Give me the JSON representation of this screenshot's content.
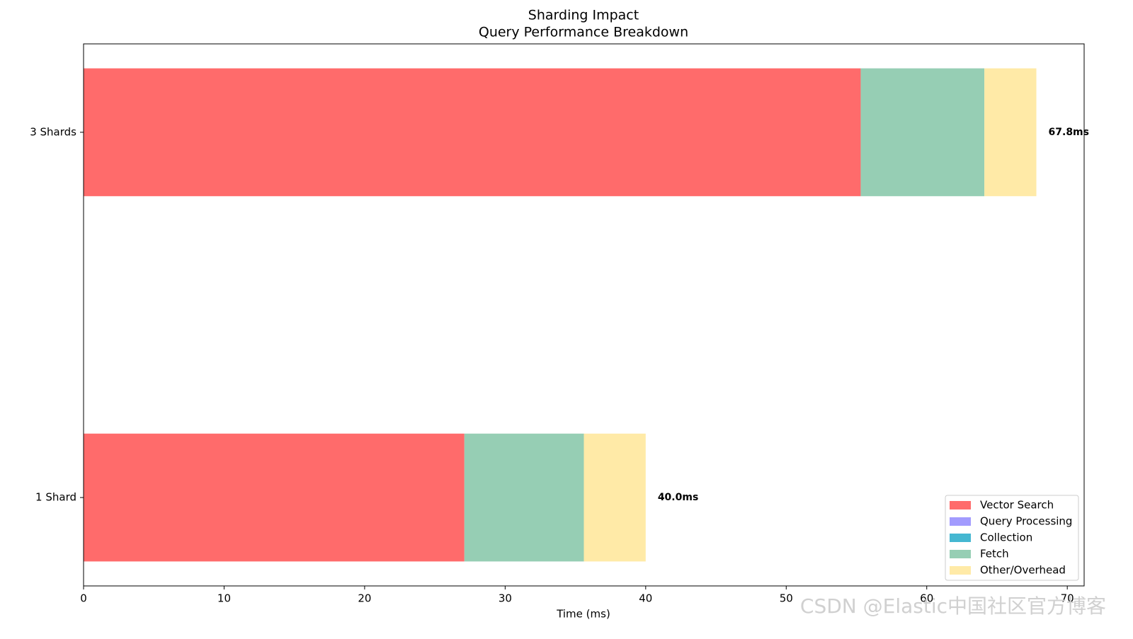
{
  "chart_data": {
    "type": "barh_stacked",
    "title": "Sharding Impact",
    "subtitle": "Query Performance Breakdown",
    "xlabel": "Time (ms)",
    "categories": [
      "1 Shard",
      "3 Shards"
    ],
    "series": [
      {
        "name": "Vector Search",
        "color": "#ff6b6b",
        "values": [
          27.1,
          55.3
        ]
      },
      {
        "name": "Query Processing",
        "color": "#a29bfe",
        "values": [
          0,
          0
        ]
      },
      {
        "name": "Collection",
        "color": "#45b7d1",
        "values": [
          0,
          0
        ]
      },
      {
        "name": "Fetch",
        "color": "#96ceb4",
        "values": [
          8.5,
          8.8
        ]
      },
      {
        "name": "Other/Overhead",
        "color": "#ffeaa7",
        "values": [
          4.4,
          3.7
        ]
      }
    ],
    "totals": [
      40.0,
      67.8
    ],
    "total_labels": [
      "40.0ms",
      "67.8ms"
    ],
    "xlim": [
      0,
      71.2
    ],
    "xticks": [
      0,
      10,
      20,
      30,
      40,
      50,
      60,
      70
    ],
    "legend": "lower right",
    "watermark": "CSDN @Elastic中国社区官方博客"
  }
}
